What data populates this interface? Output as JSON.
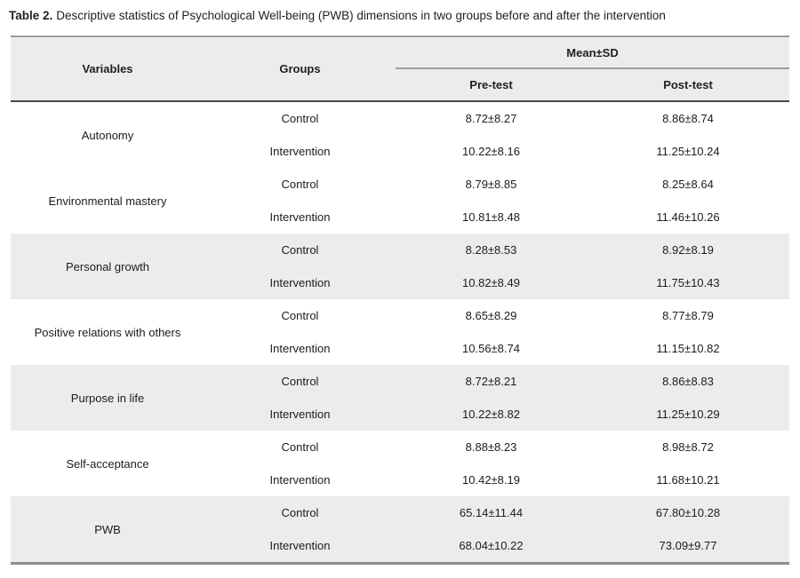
{
  "title": {
    "label": "Table 2.",
    "text": "Descriptive statistics of Psychological Well-being (PWB) dimensions in two groups before and after the intervention"
  },
  "table": {
    "headers": {
      "variables": "Variables",
      "groups": "Groups",
      "mean_sd": "Mean±SD",
      "pre_test": "Pre-test",
      "post_test": "Post-test"
    },
    "row_groups": [
      {
        "variable": "Autonomy",
        "shaded": false,
        "rows": [
          {
            "group": "Control",
            "pre": "8.72±8.27",
            "post": "8.86±8.74"
          },
          {
            "group": "Intervention",
            "pre": "10.22±8.16",
            "post": "11.25±10.24"
          }
        ]
      },
      {
        "variable": "Environmental mastery",
        "shaded": false,
        "rows": [
          {
            "group": "Control",
            "pre": "8.79±8.85",
            "post": "8.25±8.64"
          },
          {
            "group": "Intervention",
            "pre": "10.81±8.48",
            "post": "11.46±10.26"
          }
        ]
      },
      {
        "variable": "Personal growth",
        "shaded": true,
        "rows": [
          {
            "group": "Control",
            "pre": "8.28±8.53",
            "post": "8.92±8.19"
          },
          {
            "group": "Intervention",
            "pre": "10.82±8.49",
            "post": "11.75±10.43"
          }
        ]
      },
      {
        "variable": "Positive relations with others",
        "shaded": false,
        "rows": [
          {
            "group": "Control",
            "pre": "8.65±8.29",
            "post": "8.77±8.79"
          },
          {
            "group": "Intervention",
            "pre": "10.56±8.74",
            "post": "11.15±10.82"
          }
        ]
      },
      {
        "variable": "Purpose in life",
        "shaded": true,
        "rows": [
          {
            "group": "Control",
            "pre": "8.72±8.21",
            "post": "8.86±8.83"
          },
          {
            "group": "Intervention",
            "pre": "10.22±8.82",
            "post": "11.25±10.29"
          }
        ]
      },
      {
        "variable": "Self-acceptance",
        "shaded": false,
        "rows": [
          {
            "group": "Control",
            "pre": "8.88±8.23",
            "post": "8.98±8.72"
          },
          {
            "group": "Intervention",
            "pre": "10.42±8.19",
            "post": "11.68±10.21"
          }
        ]
      },
      {
        "variable": "PWB",
        "shaded": true,
        "rows": [
          {
            "group": "Control",
            "pre": "65.14±11.44",
            "post": "67.80±10.28"
          },
          {
            "group": "Intervention",
            "pre": "68.04±10.22",
            "post": "73.09±9.77"
          }
        ]
      }
    ]
  },
  "colors": {
    "header_bg": "#ececec",
    "stripe_bg": "#ececec",
    "table_top_border": "#9e9e9e",
    "mean_sd_underline": "#9e9e9e",
    "header_bottom_border": "#4a4a4a",
    "table_bottom_border": "#8c8c8c",
    "text": "#1f1f1f"
  }
}
